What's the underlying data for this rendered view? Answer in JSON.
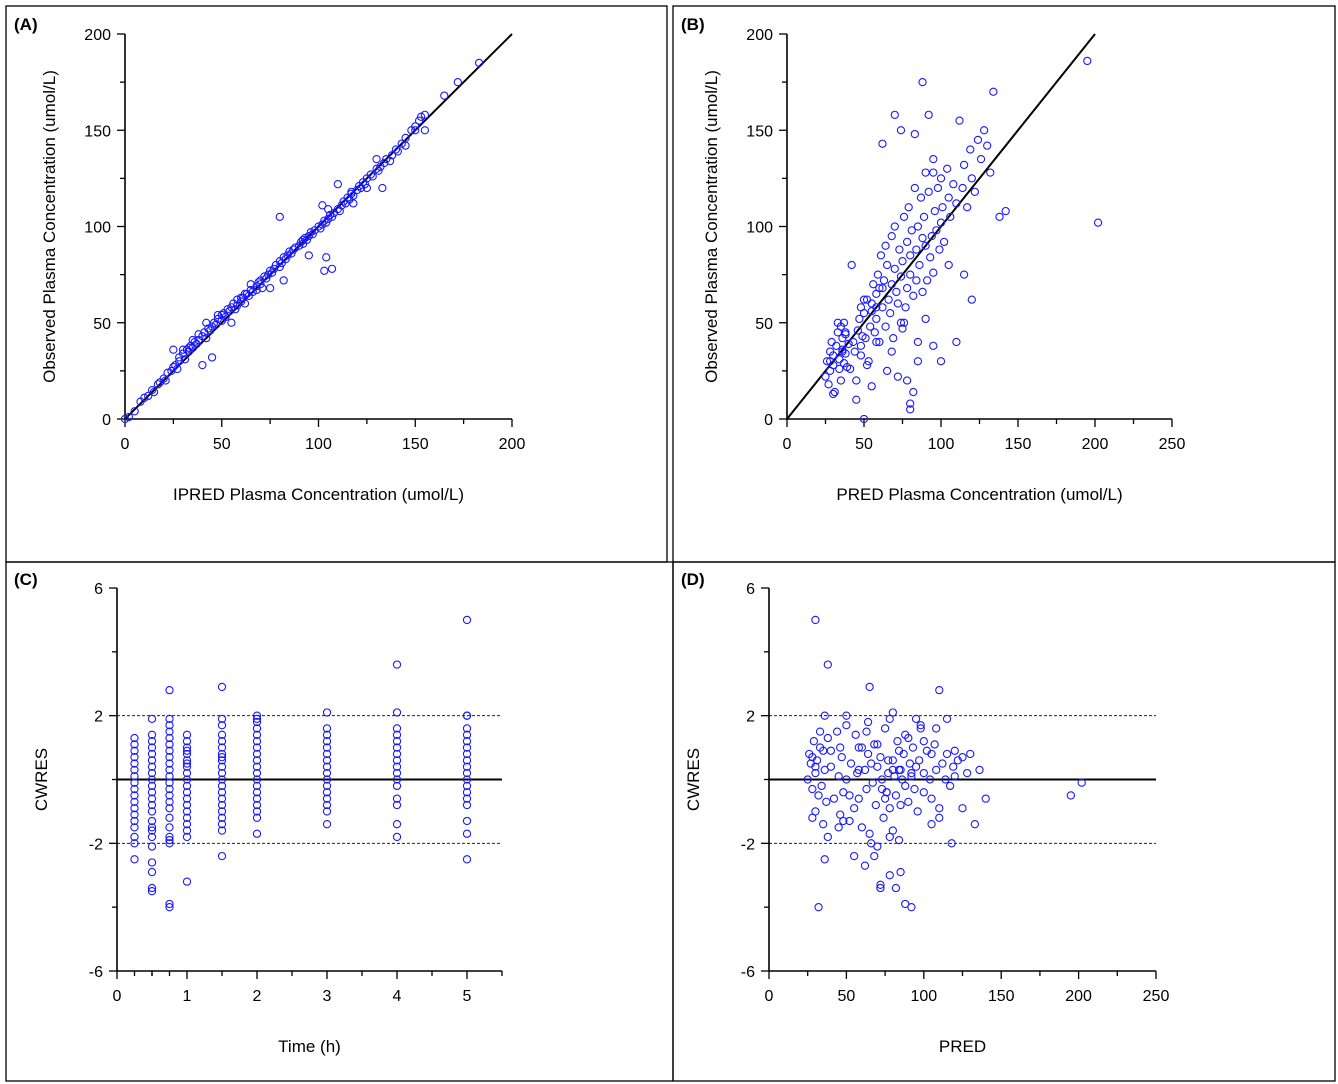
{
  "chart_data": [
    {
      "panel": "(A)",
      "type": "scatter",
      "xlabel": "IPRED Plasma Concentration (umol/L)",
      "ylabel": "Observed Plasma Concentration (umol/L)",
      "xlim": [
        0,
        200
      ],
      "ylim": [
        0,
        200
      ],
      "xticks": [
        0,
        50,
        100,
        150,
        200
      ],
      "yticks": [
        0,
        50,
        100,
        150,
        200
      ],
      "reference_line": {
        "from": [
          0,
          0
        ],
        "to": [
          200,
          200
        ]
      },
      "marker_color": "#1a1aff",
      "x": [
        0,
        2,
        5,
        8,
        10,
        12,
        14,
        15,
        17,
        18,
        20,
        21,
        22,
        24,
        25,
        26,
        27,
        28,
        28,
        30,
        31,
        32,
        33,
        34,
        35,
        36,
        37,
        38,
        38,
        40,
        41,
        42,
        43,
        44,
        45,
        46,
        47,
        48,
        50,
        50,
        51,
        52,
        53,
        54,
        55,
        56,
        57,
        58,
        58,
        60,
        61,
        62,
        63,
        64,
        65,
        65,
        66,
        68,
        69,
        70,
        71,
        72,
        73,
        74,
        75,
        76,
        77,
        78,
        80,
        80,
        81,
        82,
        83,
        84,
        85,
        86,
        87,
        88,
        90,
        91,
        92,
        93,
        94,
        95,
        96,
        97,
        98,
        100,
        101,
        102,
        103,
        104,
        105,
        106,
        107,
        108,
        110,
        111,
        112,
        113,
        114,
        115,
        116,
        117,
        118,
        120,
        121,
        122,
        123,
        124,
        125,
        127,
        128,
        130,
        131,
        132,
        134,
        135,
        137,
        138,
        140,
        141,
        143,
        145,
        148,
        150,
        152,
        153,
        155,
        165,
        172,
        183,
        25,
        30,
        35,
        40,
        42,
        48,
        55,
        62,
        70,
        75,
        82,
        95,
        103,
        104,
        107,
        110,
        117,
        125,
        130,
        133,
        145,
        150,
        155,
        45,
        33,
        60,
        68,
        80,
        92,
        118,
        105,
        102
      ],
      "y": [
        0,
        1,
        4,
        9,
        11,
        12,
        15,
        14,
        18,
        19,
        21,
        20,
        24,
        25,
        27,
        28,
        26,
        30,
        32,
        34,
        31,
        36,
        35,
        38,
        37,
        40,
        39,
        41,
        44,
        43,
        45,
        42,
        47,
        46,
        48,
        50,
        49,
        52,
        51,
        54,
        55,
        53,
        57,
        56,
        58,
        60,
        57,
        62,
        59,
        61,
        63,
        60,
        65,
        64,
        67,
        70,
        66,
        69,
        71,
        72,
        68,
        74,
        73,
        75,
        77,
        76,
        78,
        80,
        79,
        82,
        81,
        84,
        83,
        85,
        87,
        86,
        88,
        89,
        90,
        92,
        91,
        94,
        93,
        95,
        97,
        96,
        98,
        100,
        99,
        101,
        103,
        102,
        104,
        106,
        105,
        107,
        109,
        108,
        111,
        113,
        112,
        115,
        114,
        117,
        116,
        119,
        121,
        120,
        123,
        122,
        125,
        127,
        126,
        130,
        129,
        131,
        133,
        135,
        134,
        137,
        140,
        139,
        143,
        146,
        150,
        152,
        155,
        157,
        158,
        168,
        175,
        185,
        36,
        36,
        41,
        28,
        50,
        54,
        50,
        65,
        70,
        68,
        72,
        85,
        77,
        84,
        78,
        122,
        118,
        120,
        135,
        120,
        142,
        150,
        150,
        32,
        37,
        63,
        67,
        105,
        93,
        112,
        109,
        111
      ]
    },
    {
      "panel": "(B)",
      "type": "scatter",
      "xlabel": "PRED Plasma Concentration (umol/L)",
      "ylabel": "Observed Plasma Concentration (umol/L)",
      "xlim": [
        0,
        250
      ],
      "ylim": [
        0,
        200
      ],
      "xticks": [
        0,
        50,
        100,
        150,
        200,
        250
      ],
      "yticks": [
        0,
        50,
        100,
        150,
        200
      ],
      "reference_line": {
        "from": [
          0,
          0
        ],
        "to": [
          200,
          200
        ]
      },
      "marker_color": "#1a1aff",
      "x": [
        25,
        26,
        27,
        28,
        28,
        29,
        30,
        30,
        31,
        32,
        33,
        34,
        34,
        35,
        35,
        36,
        36,
        37,
        37,
        38,
        38,
        39,
        40,
        42,
        44,
        45,
        46,
        47,
        48,
        48,
        49,
        50,
        50,
        51,
        52,
        53,
        54,
        55,
        55,
        56,
        57,
        58,
        58,
        59,
        60,
        60,
        61,
        62,
        63,
        64,
        64,
        65,
        66,
        67,
        68,
        68,
        69,
        70,
        70,
        71,
        72,
        73,
        74,
        74,
        75,
        76,
        77,
        78,
        78,
        79,
        80,
        80,
        81,
        82,
        83,
        84,
        84,
        85,
        86,
        87,
        88,
        88,
        89,
        90,
        90,
        91,
        92,
        93,
        94,
        95,
        95,
        96,
        97,
        98,
        99,
        100,
        100,
        101,
        102,
        104,
        105,
        106,
        108,
        110,
        112,
        114,
        115,
        117,
        119,
        120,
        122,
        124,
        126,
        128,
        130,
        132,
        134,
        138,
        142,
        195,
        202,
        28,
        30,
        33,
        36,
        38,
        41,
        43,
        45,
        48,
        50,
        52,
        55,
        58,
        62,
        65,
        68,
        72,
        75,
        78,
        82,
        85,
        90,
        95,
        100,
        105,
        110,
        115,
        120,
        88,
        62,
        58,
        70,
        74,
        85,
        80,
        95,
        80,
        92,
        83,
        76
      ],
      "y": [
        22,
        30,
        18,
        35,
        25,
        40,
        28,
        33,
        14,
        38,
        45,
        26,
        31,
        48,
        20,
        36,
        42,
        29,
        50,
        34,
        44,
        27,
        39,
        80,
        35,
        10,
        46,
        52,
        38,
        58,
        43,
        55,
        0,
        42,
        62,
        30,
        48,
        60,
        17,
        70,
        45,
        65,
        52,
        75,
        40,
        68,
        85,
        58,
        72,
        48,
        90,
        80,
        62,
        55,
        95,
        70,
        42,
        78,
        100,
        66,
        60,
        88,
        74,
        50,
        82,
        105,
        58,
        92,
        68,
        110,
        75,
        85,
        98,
        64,
        120,
        72,
        88,
        100,
        80,
        115,
        94,
        66,
        105,
        90,
        128,
        72,
        118,
        84,
        95,
        135,
        76,
        108,
        98,
        120,
        88,
        102,
        125,
        110,
        92,
        130,
        115,
        105,
        122,
        112,
        155,
        120,
        132,
        110,
        140,
        125,
        118,
        145,
        135,
        150,
        142,
        128,
        170,
        105,
        108,
        186,
        102,
        30,
        13,
        50,
        35,
        45,
        26,
        40,
        20,
        33,
        62,
        28,
        56,
        40,
        68,
        25,
        35,
        22,
        47,
        20,
        14,
        30,
        52,
        38,
        30,
        80,
        40,
        75,
        62,
        175,
        143,
        58,
        158,
        150,
        40,
        8,
        128,
        5,
        158,
        148,
        50
      ]
    },
    {
      "panel": "(C)",
      "type": "scatter",
      "xlabel": "Time (h)",
      "ylabel": "CWRES",
      "xlim": [
        0,
        5.5
      ],
      "ylim": [
        -6,
        6
      ],
      "xticks": [
        0,
        1,
        2,
        3,
        4,
        5
      ],
      "yticks": [
        -6,
        -2,
        2,
        6
      ],
      "zero_line": 0,
      "dashed_lines": [
        -2,
        2
      ],
      "marker_color": "#1a1aff",
      "x": [
        0.25,
        0.25,
        0.25,
        0.25,
        0.25,
        0.25,
        0.25,
        0.25,
        0.25,
        0.25,
        0.25,
        0.25,
        0.25,
        0.25,
        0.25,
        0.25,
        0.25,
        0.25,
        0.5,
        0.5,
        0.5,
        0.5,
        0.5,
        0.5,
        0.5,
        0.5,
        0.5,
        0.5,
        0.5,
        0.5,
        0.5,
        0.5,
        0.5,
        0.5,
        0.5,
        0.5,
        0.5,
        0.5,
        0.5,
        0.5,
        0.5,
        0.75,
        0.75,
        0.75,
        0.75,
        0.75,
        0.75,
        0.75,
        0.75,
        0.75,
        0.75,
        0.75,
        0.75,
        0.75,
        0.75,
        0.75,
        0.75,
        0.75,
        0.75,
        0.75,
        0.75,
        0.75,
        0.75,
        0.75,
        1,
        1,
        1,
        1,
        1,
        1,
        1,
        1,
        1,
        1,
        1,
        1,
        1,
        1,
        1,
        1,
        1,
        1,
        1,
        1,
        1.5,
        1.5,
        1.5,
        1.5,
        1.5,
        1.5,
        1.5,
        1.5,
        1.5,
        1.5,
        1.5,
        1.5,
        1.5,
        1.5,
        1.5,
        1.5,
        1.5,
        1.5,
        1.5,
        1.5,
        1.5,
        2,
        2,
        2,
        2,
        2,
        2,
        2,
        2,
        2,
        2,
        2,
        2,
        2,
        2,
        2,
        2,
        2,
        2,
        2,
        3,
        3,
        3,
        3,
        3,
        3,
        3,
        3,
        3,
        3,
        3,
        3,
        3,
        3,
        3,
        3,
        4,
        4,
        4,
        4,
        4,
        4,
        4,
        4,
        4,
        4,
        4,
        4,
        4,
        4,
        4,
        4,
        5,
        5,
        5,
        5,
        5,
        5,
        5,
        5,
        5,
        5,
        5,
        5,
        5,
        5,
        5,
        5,
        5,
        5,
        5
      ],
      "y": [
        1.3,
        1.1,
        0.9,
        0.7,
        0.5,
        0.3,
        0.1,
        -0.1,
        -0.3,
        -0.5,
        -0.7,
        -0.9,
        -1.1,
        -1.3,
        -1.5,
        -1.8,
        -2.0,
        -2.5,
        1.9,
        1.4,
        1.2,
        1.0,
        0.8,
        0.6,
        0.4,
        0.2,
        0.0,
        -0.2,
        -0.4,
        -0.6,
        -0.8,
        -1.0,
        -1.3,
        -1.5,
        -1.8,
        -2.1,
        -2.6,
        -2.9,
        -3.4,
        -3.5,
        -1.6,
        2.8,
        1.9,
        1.7,
        1.5,
        1.3,
        1.1,
        0.9,
        0.7,
        0.5,
        0.3,
        0.1,
        -0.1,
        -0.3,
        -0.5,
        -0.7,
        -0.9,
        -1.2,
        -1.5,
        -1.8,
        -1.9,
        -2.0,
        -3.9,
        -4.0,
        1.4,
        1.2,
        1.0,
        0.8,
        0.6,
        0.4,
        0.2,
        0.0,
        -0.2,
        -0.4,
        -0.6,
        -0.8,
        -1.0,
        -1.2,
        -1.4,
        -1.6,
        -1.8,
        -3.2,
        0.9,
        0.5,
        2.9,
        1.9,
        1.7,
        1.4,
        1.2,
        1.0,
        0.8,
        0.6,
        0.4,
        0.2,
        0.0,
        -0.2,
        -0.4,
        -0.6,
        -0.8,
        -1.0,
        -1.2,
        -1.4,
        -1.6,
        -2.4,
        0.7,
        2.0,
        1.8,
        1.6,
        1.4,
        1.2,
        1.0,
        0.8,
        0.6,
        0.4,
        0.2,
        0.0,
        -0.2,
        -0.4,
        -0.6,
        -0.8,
        -1.0,
        -1.2,
        -1.7,
        1.9,
        2.1,
        1.6,
        1.4,
        1.2,
        1.0,
        0.8,
        0.6,
        0.4,
        0.2,
        0.0,
        -0.2,
        -0.4,
        -0.6,
        -0.8,
        -1.0,
        -1.4,
        3.6,
        2.1,
        1.6,
        1.4,
        1.2,
        1.0,
        0.8,
        0.6,
        0.4,
        0.2,
        0.0,
        -0.2,
        -0.6,
        -0.8,
        -1.4,
        -1.8,
        5.0,
        2.0,
        2.0,
        1.6,
        1.4,
        1.2,
        1.0,
        0.8,
        0.6,
        0.4,
        0.2,
        0.0,
        -0.2,
        -0.4,
        -0.6,
        -0.8,
        -1.3,
        -1.7,
        -2.5
      ]
    },
    {
      "panel": "(D)",
      "type": "scatter",
      "xlabel": "PRED",
      "ylabel": "CWRES",
      "xlim": [
        0,
        250
      ],
      "ylim": [
        -6,
        6
      ],
      "xticks": [
        0,
        50,
        100,
        150,
        200,
        250
      ],
      "yticks": [
        -6,
        -2,
        2,
        6
      ],
      "zero_line": 0,
      "dashed_lines": [
        -2,
        2
      ],
      "marker_color": "#1a1aff",
      "x": [
        25,
        26,
        27,
        28,
        29,
        30,
        30,
        31,
        32,
        33,
        34,
        35,
        35,
        36,
        37,
        38,
        38,
        40,
        42,
        44,
        45,
        46,
        47,
        48,
        50,
        50,
        52,
        53,
        55,
        56,
        57,
        58,
        60,
        60,
        62,
        63,
        64,
        65,
        66,
        67,
        68,
        69,
        70,
        70,
        72,
        73,
        74,
        75,
        76,
        77,
        78,
        78,
        80,
        80,
        81,
        82,
        83,
        84,
        85,
        86,
        87,
        88,
        88,
        90,
        91,
        92,
        93,
        94,
        95,
        96,
        97,
        98,
        100,
        100,
        102,
        104,
        105,
        107,
        108,
        110,
        112,
        114,
        115,
        117,
        119,
        120,
        122,
        125,
        128,
        130,
        133,
        136,
        140,
        195,
        202,
        28,
        30,
        36,
        38,
        33,
        36,
        45,
        50,
        55,
        58,
        62,
        65,
        68,
        72,
        75,
        78,
        82,
        85,
        88,
        92,
        95,
        98,
        105,
        110,
        115,
        120,
        125,
        118,
        30,
        32,
        64,
        84,
        108,
        40,
        63,
        28,
        48,
        80,
        70,
        73,
        77,
        80,
        85,
        90,
        76,
        66,
        72,
        78,
        84,
        92,
        46,
        52,
        58,
        100,
        105,
        110
      ],
      "y": [
        0.0,
        0.8,
        0.5,
        -0.3,
        1.2,
        0.2,
        -1.0,
        0.6,
        -0.5,
        1.0,
        -0.2,
        0.9,
        -1.4,
        0.3,
        -0.7,
        1.3,
        -1.8,
        0.4,
        -0.6,
        1.5,
        0.1,
        -1.1,
        0.7,
        -0.4,
        1.7,
        0.0,
        -1.3,
        0.5,
        -0.9,
        1.4,
        0.2,
        -0.6,
        1.0,
        -1.5,
        0.3,
        -0.3,
        0.8,
        -1.7,
        0.5,
        -0.1,
        1.1,
        -0.8,
        0.4,
        -2.1,
        0.7,
        0.0,
        -1.2,
        1.6,
        -0.4,
        0.2,
        -0.9,
        1.9,
        0.6,
        -1.6,
        0.1,
        -0.5,
        1.2,
        -1.9,
        0.3,
        0.0,
        0.8,
        -0.2,
        1.4,
        -0.7,
        0.5,
        0.1,
        1.0,
        -0.3,
        0.4,
        -1.0,
        0.6,
        1.7,
        0.2,
        -0.4,
        0.9,
        0.0,
        -0.6,
        1.1,
        0.3,
        -1.2,
        0.5,
        0.0,
        0.8,
        -0.2,
        0.4,
        0.1,
        0.6,
        -0.9,
        0.2,
        0.8,
        -1.4,
        0.3,
        -0.6,
        -0.5,
        -0.1,
        -1.2,
        5.0,
        2.0,
        3.6,
        1.5,
        -2.5,
        -1.5,
        2.0,
        -2.4,
        1.0,
        -2.7,
        2.9,
        -2.4,
        -3.3,
        -0.6,
        -3.0,
        -3.4,
        -2.9,
        -3.9,
        -4.0,
        1.9,
        1.6,
        -1.4,
        2.8,
        1.9,
        0.9,
        0.7,
        -2.0,
        0.4,
        -4.0,
        1.8,
        0.3,
        1.6,
        0.9,
        1.5,
        0.7,
        -1.3,
        2.1,
        1.1,
        -0.3,
        0.6,
        0.3,
        -0.8,
        1.3,
        -0.4,
        -2.0,
        -3.4,
        -1.8,
        0.9,
        0.2,
        1.0,
        -0.5,
        0.3,
        1.2,
        0.8,
        -0.9
      ]
    }
  ]
}
